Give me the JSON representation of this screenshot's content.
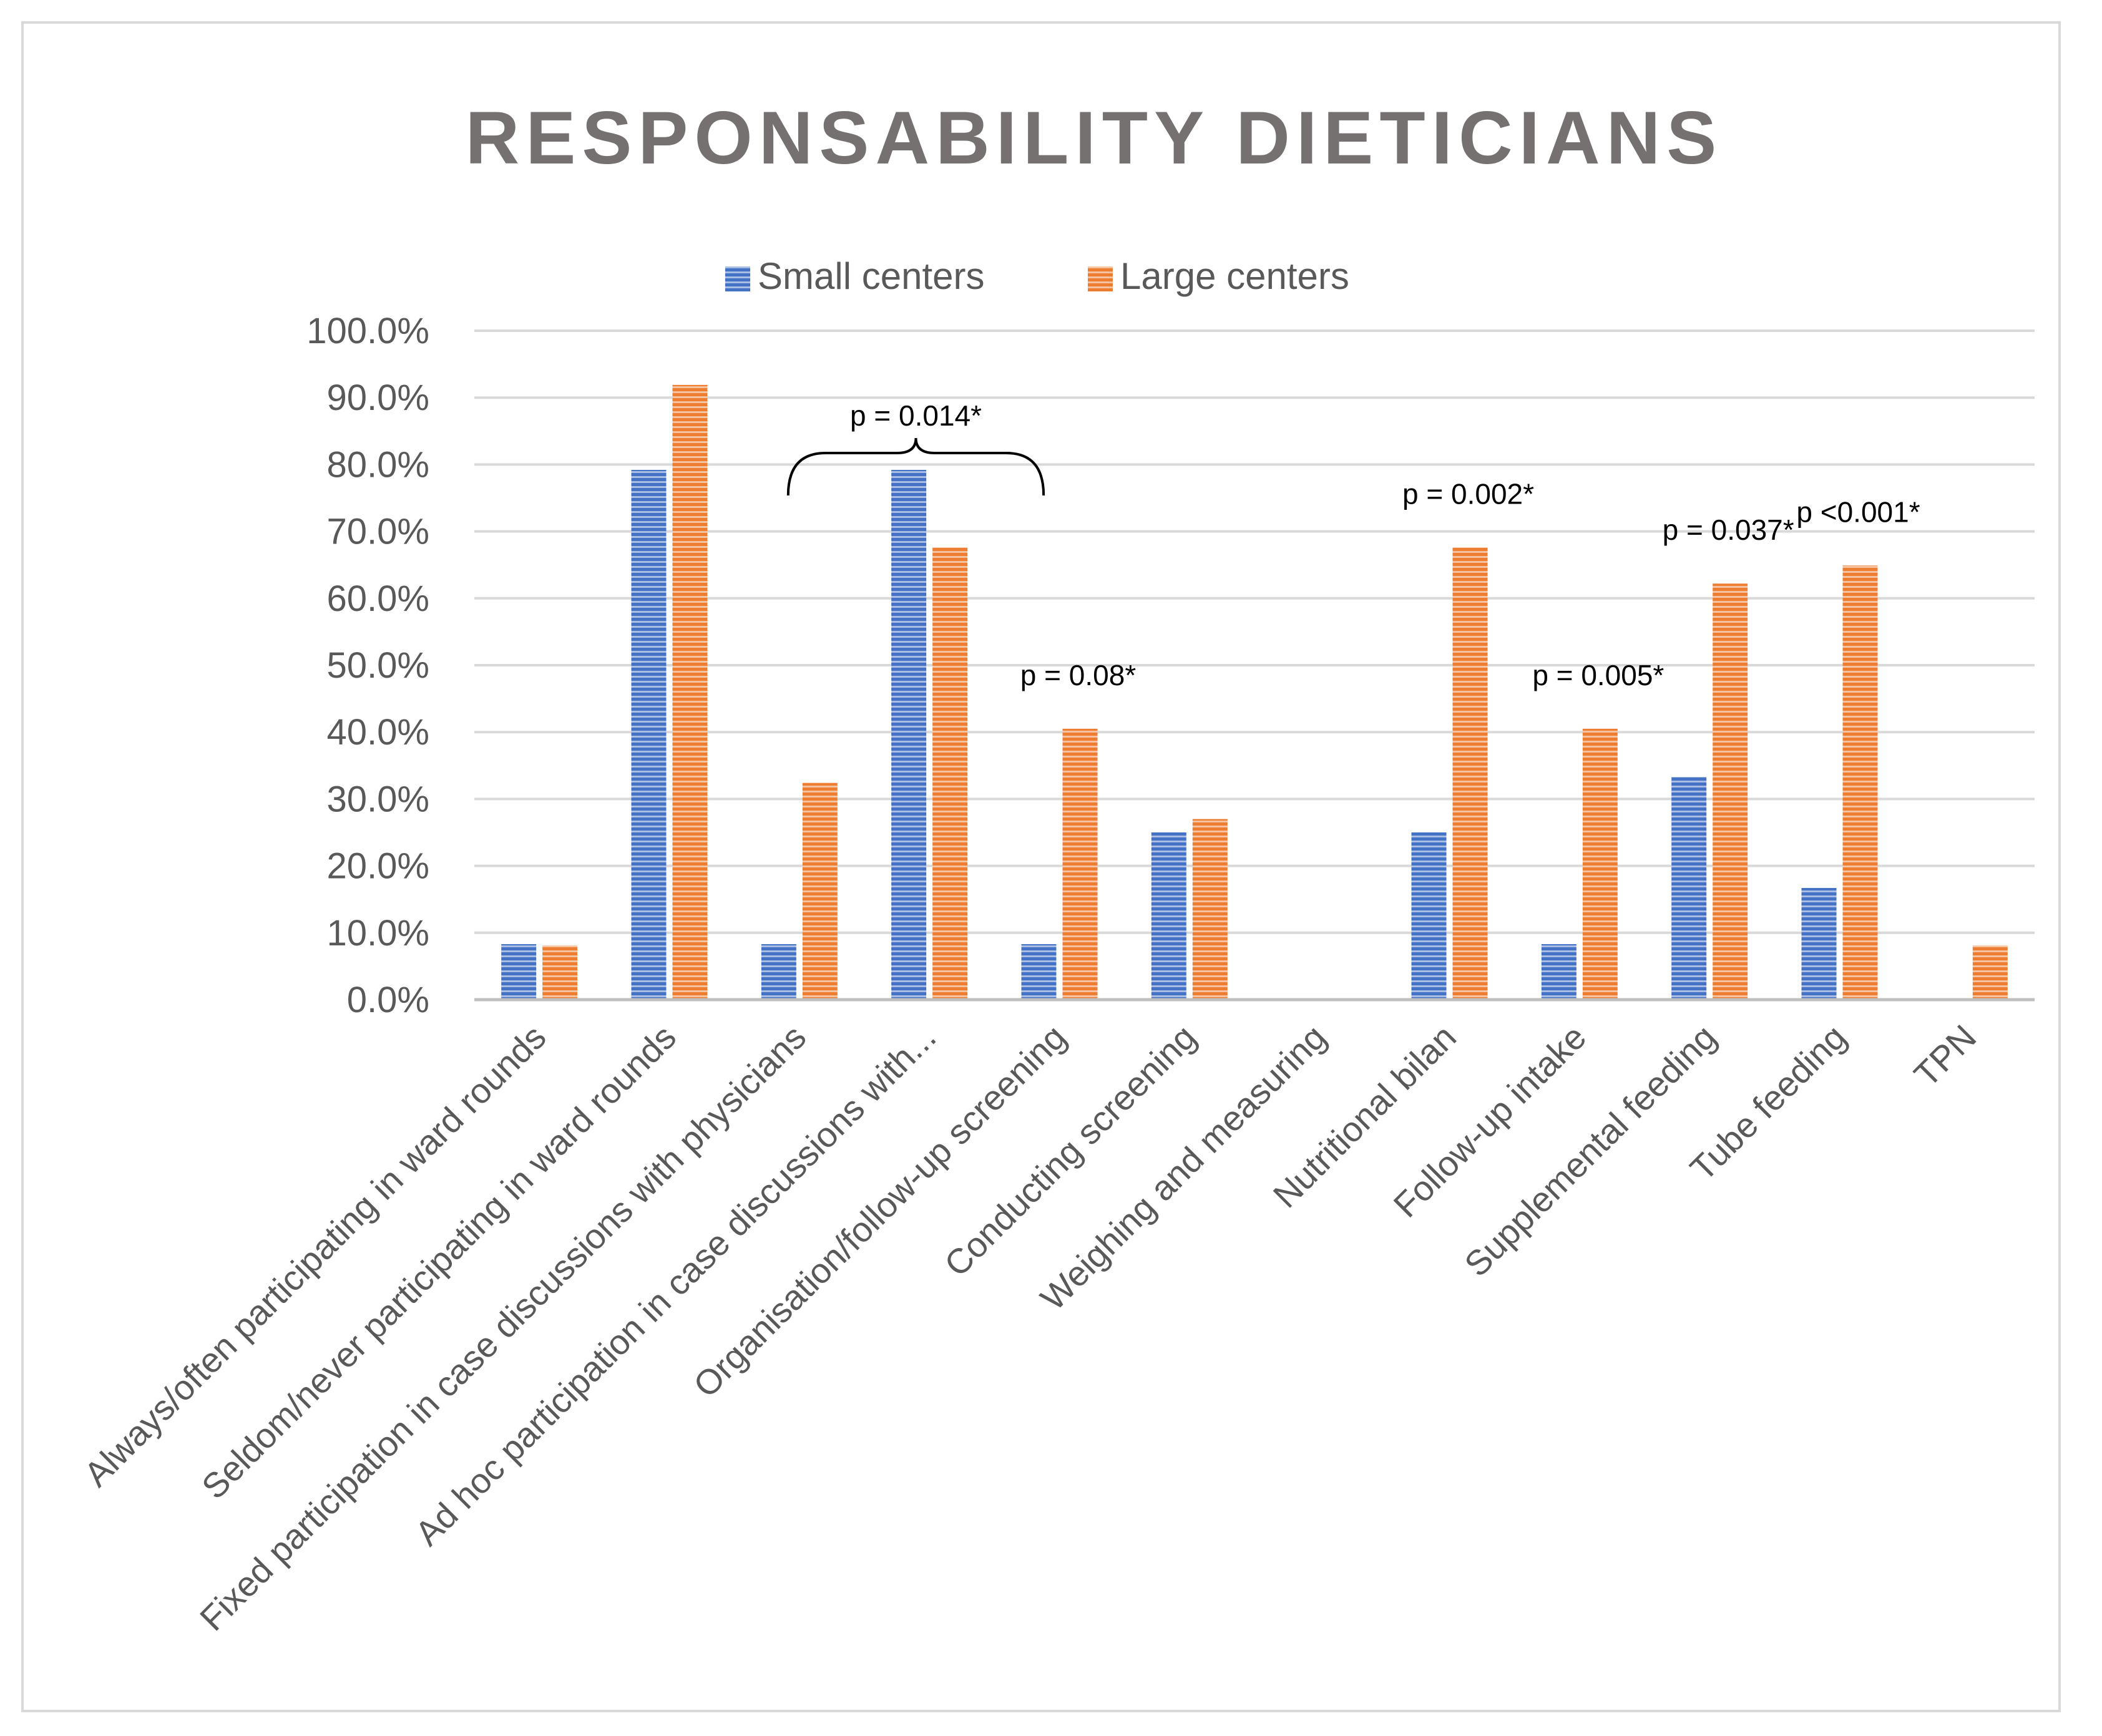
{
  "chart_data": {
    "type": "bar",
    "title": "RESPONSABILITY DIETICIANS",
    "xlabel": "",
    "ylabel": "",
    "ylim": [
      0,
      100
    ],
    "yticks": [
      "0.0%",
      "10.0%",
      "20.0%",
      "30.0%",
      "40.0%",
      "50.0%",
      "60.0%",
      "70.0%",
      "80.0%",
      "90.0%",
      "100.0%"
    ],
    "grid": true,
    "legend_position": "top",
    "categories": [
      "Always/often participating in ward rounds",
      "Seldom/never participating in ward rounds",
      "Fixed participation in case discussions with physicians",
      "Ad hoc participation in case discussions with...",
      "Organisation/follow-up  screening",
      "Conducting  screening",
      "Weighing and measuring",
      "Nutritional bilan",
      "Follow-up intake",
      "Supplemental feeding",
      "Tube feeding",
      "TPN"
    ],
    "series": [
      {
        "name": "Small centers",
        "color": "#4472c4",
        "values": [
          8.3,
          79.2,
          8.3,
          79.2,
          8.3,
          25.0,
          0,
          25.0,
          8.3,
          33.3,
          16.7,
          0
        ]
      },
      {
        "name": "Large centers",
        "color": "#ed7d31",
        "values": [
          8.1,
          91.9,
          32.4,
          67.6,
          40.5,
          27.0,
          0,
          67.6,
          40.5,
          62.2,
          64.9,
          8.1
        ]
      }
    ],
    "annotations": [
      {
        "text": "p = 0.014*",
        "category_index": 2.5,
        "bracket_from": 2,
        "bracket_to": 3
      },
      {
        "text": "p = 0.08*",
        "category_index": 4
      },
      {
        "text": "p = 0.002*",
        "category_index": 7
      },
      {
        "text": "p = 0.005*",
        "category_index": 8
      },
      {
        "text": "p = 0.037*",
        "category_index": 9
      },
      {
        "text": "p <0.001*",
        "category_index": 10
      }
    ]
  }
}
